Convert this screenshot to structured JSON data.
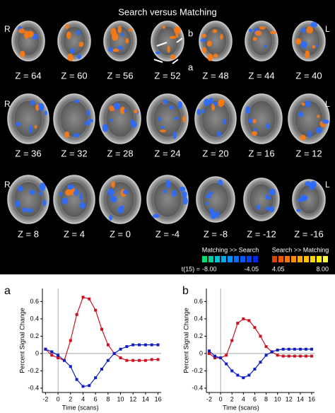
{
  "figure": {
    "title": "Search versus Matching",
    "slices": [
      [
        "Z = 64",
        "Z = 60",
        "Z = 56",
        "Z = 52",
        "Z = 48",
        "Z = 44",
        "Z = 40"
      ],
      [
        "Z = 36",
        "Z = 32",
        "Z = 28",
        "Z = 24",
        "Z = 20",
        "Z = 16",
        "Z = 12"
      ],
      [
        "Z = 8",
        "Z = 4",
        "Z = 0",
        "Z = -4",
        "Z = -8",
        "Z = -12",
        "Z = -16"
      ]
    ],
    "side_labels": {
      "right": "R",
      "left": "L"
    },
    "arrow_labels": [
      "b",
      "a"
    ],
    "colorbar": {
      "t_label": "t(15) =",
      "negative": {
        "label": "Matching >> Search",
        "colors": [
          "#00e070",
          "#00d0a0",
          "#00c0d0",
          "#00a8f0",
          "#0090ff",
          "#0070ff",
          "#0058ff",
          "#0040f0",
          "#0028e0"
        ],
        "ticks": [
          {
            "value": -8,
            "label": "-8.00"
          },
          -4.05
        ]
      },
      "positive": {
        "label": "Search >> Matching",
        "colors": [
          "#e04000",
          "#f05800",
          "#ff7000",
          "#ff8c00",
          "#ffa800",
          "#ffc000",
          "#ffd800",
          "#fff000",
          "#ffff40"
        ],
        "ticks": [
          4.05,
          {
            "value": 8,
            "label": "8.00"
          }
        ]
      }
    }
  },
  "chart_data": [
    {
      "type": "line",
      "panel": "a",
      "xlabel": "Time (scans)",
      "ylabel": "Percent Signal Change",
      "x": [
        -2,
        -1,
        0,
        1,
        2,
        3,
        4,
        5,
        6,
        7,
        8,
        9,
        10,
        11,
        12,
        13,
        14,
        15,
        16
      ],
      "series": [
        {
          "color": "#d01020",
          "values": [
            0.05,
            -0.02,
            -0.05,
            -0.08,
            0.15,
            0.45,
            0.65,
            0.63,
            0.5,
            0.28,
            0.1,
            0.0,
            -0.05,
            -0.08,
            -0.08,
            -0.08,
            -0.08,
            -0.07,
            -0.07
          ]
        },
        {
          "color": "#1020c0",
          "values": [
            0.05,
            0.02,
            -0.02,
            -0.08,
            -0.15,
            -0.3,
            -0.38,
            -0.37,
            -0.28,
            -0.18,
            -0.08,
            0.0,
            0.05,
            0.08,
            0.1,
            0.1,
            0.1,
            0.1,
            0.1
          ]
        }
      ],
      "xlim": [
        -2.5,
        16.5
      ],
      "xticks": [
        -2,
        0,
        2,
        4,
        6,
        8,
        10,
        12,
        14,
        16
      ],
      "ylim": [
        -0.45,
        0.75
      ],
      "yticks": [
        -0.4,
        -0.2,
        0,
        0.2,
        0.4,
        0.6
      ]
    },
    {
      "type": "line",
      "panel": "b",
      "xlabel": "Time (scans)",
      "ylabel": "Percent Signal Change",
      "x": [
        -2,
        -1,
        0,
        1,
        2,
        3,
        4,
        5,
        6,
        7,
        8,
        9,
        10,
        11,
        12,
        13,
        14,
        15,
        16
      ],
      "series": [
        {
          "color": "#d01020",
          "values": [
            0.0,
            -0.05,
            -0.05,
            -0.02,
            0.15,
            0.35,
            0.4,
            0.38,
            0.3,
            0.2,
            0.08,
            0.02,
            -0.02,
            -0.03,
            -0.03,
            -0.03,
            -0.03,
            -0.03,
            -0.03
          ]
        },
        {
          "color": "#1020c0",
          "values": [
            0.03,
            -0.03,
            -0.05,
            -0.12,
            -0.2,
            -0.25,
            -0.28,
            -0.25,
            -0.18,
            -0.1,
            -0.02,
            0.02,
            0.04,
            0.05,
            0.05,
            0.05,
            0.05,
            0.05,
            0.05
          ]
        }
      ],
      "xlim": [
        -2.5,
        16.5
      ],
      "xticks": [
        -2,
        0,
        2,
        4,
        6,
        8,
        10,
        12,
        14,
        16
      ],
      "ylim": [
        -0.45,
        0.75
      ],
      "yticks": [
        -0.4,
        -0.2,
        0,
        0.2,
        0.4,
        0.6
      ]
    }
  ]
}
